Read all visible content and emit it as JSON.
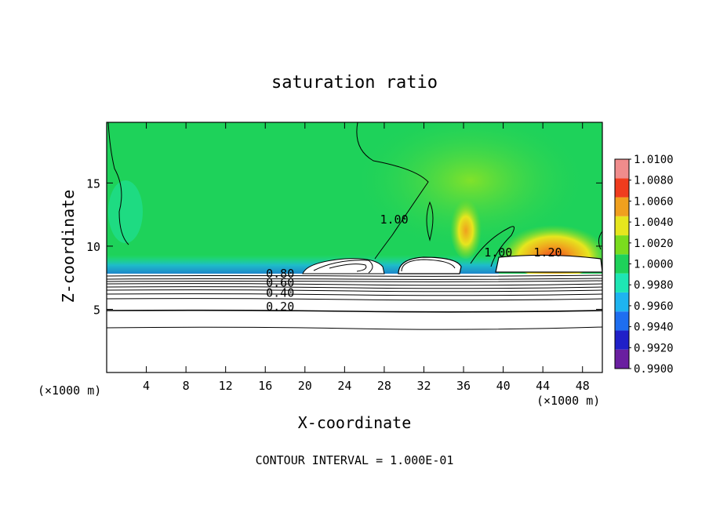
{
  "chart_data": {
    "type": "heatmap",
    "title": "saturation ratio",
    "xlabel": "X-coordinate",
    "ylabel": "Z-coordinate",
    "x_unit": "(×1000 m)",
    "x_unit_right": "(×1000 m)",
    "footer": "CONTOUR INTERVAL = 1.000E-01",
    "xlim": [
      0,
      50
    ],
    "ylim": [
      0,
      19.8
    ],
    "x_ticks": [
      4,
      8,
      12,
      16,
      20,
      24,
      28,
      32,
      36,
      40,
      44,
      48
    ],
    "x_tick_labels": [
      "4",
      "8",
      "12",
      "16",
      "20",
      "24",
      "28",
      "32",
      "36",
      "40",
      "44",
      "48"
    ],
    "y_ticks": [
      5,
      10,
      15
    ],
    "y_tick_labels": [
      "5",
      "10",
      "15"
    ],
    "colorbar": {
      "levels": [
        0.99,
        0.992,
        0.994,
        0.996,
        0.998,
        1.0,
        1.002,
        1.004,
        1.006,
        1.008,
        1.01
      ],
      "labels": [
        "0.9900",
        "0.9920",
        "0.9940",
        "0.9960",
        "0.9980",
        "1.0000",
        "1.0020",
        "1.0040",
        "1.0060",
        "1.0080",
        "1.0100"
      ],
      "colors": [
        "#6a1fa0",
        "#2020c8",
        "#1e6ef0",
        "#1eb4f0",
        "#1ee6b4",
        "#1ed25a",
        "#7adc1e",
        "#e6e61e",
        "#f0a01e",
        "#f03c1e",
        "#f08c8c"
      ]
    },
    "contour_labels": [
      {
        "text": "0.80",
        "x": 17.5,
        "y": 7.5
      },
      {
        "text": "0.60",
        "x": 17.5,
        "y": 6.8
      },
      {
        "text": "0.40",
        "x": 17.5,
        "y": 6.0
      },
      {
        "text": "0.20",
        "x": 17.5,
        "y": 4.9
      },
      {
        "text": "1.00",
        "x": 29.0,
        "y": 11.8
      },
      {
        "text": "1.00",
        "x": 39.5,
        "y": 9.2
      },
      {
        "text": "1.20",
        "x": 44.5,
        "y": 9.2
      }
    ],
    "background_value": 1.0
  }
}
